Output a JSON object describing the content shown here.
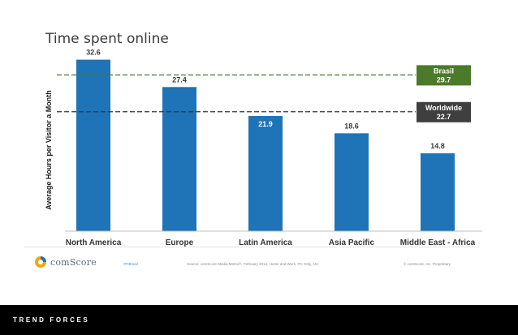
{
  "slide": {
    "title": "Time spent online"
  },
  "chart_data": {
    "type": "bar",
    "title": "",
    "xlabel": "",
    "ylabel": "Average Hours per Visitor a Month",
    "categories": [
      "North America",
      "Europe",
      "Latin America",
      "Asia Pacific",
      "Middle East - Africa"
    ],
    "values": [
      32.6,
      27.4,
      21.9,
      18.6,
      14.8
    ],
    "bar_color": "#1f73b7",
    "value_label_colors": [
      "#3a3a3a",
      "#3a3a3a",
      "#ffffff",
      "#3a3a3a",
      "#3a3a3a"
    ],
    "ylim": [
      0,
      35
    ],
    "grid": false,
    "reference_lines": [
      {
        "label": "Brasil",
        "value": 29.7,
        "value_label": "29.7",
        "line_color": "#4a7a2a",
        "box_color": "#4a7a2a"
      },
      {
        "label": "Worldwide",
        "value": 22.7,
        "value_label": "22.7",
        "line_color": "#333333",
        "box_color": "#3f3f3f"
      }
    ]
  },
  "footer": {
    "logo_text": "comScore",
    "hashtag": "#FIBrasil",
    "source": "Source: comScore Media Metrix®, February 2014, Home and Work, PC Only, 15+",
    "copyright": "© comScore, Inc. Proprietary."
  },
  "bottom_bar": {
    "label": "TREND FORCES"
  }
}
